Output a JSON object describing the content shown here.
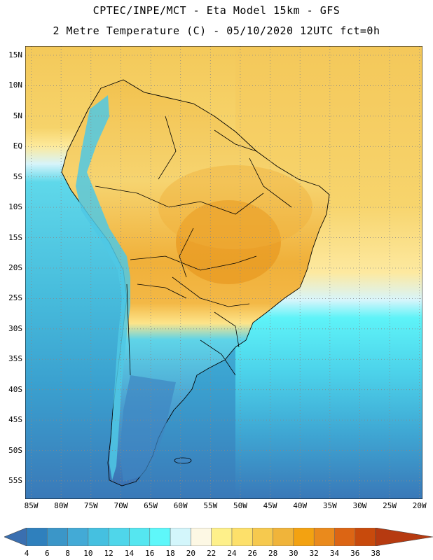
{
  "header": {
    "line1": "CPTEC/INPE/MCT -  Eta Model 15km - GFS",
    "line2": "2 Metre Temperature (C) - 05/10/2020 12UTC fct=0h"
  },
  "map": {
    "region": "South America",
    "lat_labels": [
      "15N",
      "10N",
      "5N",
      "EQ",
      "5S",
      "10S",
      "15S",
      "20S",
      "25S",
      "30S",
      "35S",
      "40S",
      "45S",
      "50S",
      "55S"
    ],
    "lon_labels": [
      "85W",
      "80W",
      "75W",
      "70W",
      "65W",
      "60W",
      "55W",
      "50W",
      "45W",
      "40W",
      "35W",
      "30W",
      "25W",
      "20W"
    ],
    "lat_range": [
      -58,
      16.5
    ],
    "lon_range": [
      -86,
      -19.5
    ],
    "grid": "dotted"
  },
  "colorbar": {
    "levels": [
      "4",
      "6",
      "8",
      "10",
      "12",
      "14",
      "16",
      "18",
      "20",
      "22",
      "24",
      "26",
      "28",
      "30",
      "32",
      "34",
      "36",
      "38"
    ],
    "colors": [
      "#3a6fb0",
      "#2f80bd",
      "#3b96c8",
      "#43aad6",
      "#45c0e0",
      "#4fd6ea",
      "#55e6f0",
      "#5ef7fa",
      "#d3f6fb",
      "#fdf8e4",
      "#fef08a",
      "#fde06a",
      "#f6c94e",
      "#f0b43a",
      "#f3a211",
      "#ea8a1c",
      "#dc6514",
      "#c84a0c",
      "#b63a10"
    ]
  }
}
